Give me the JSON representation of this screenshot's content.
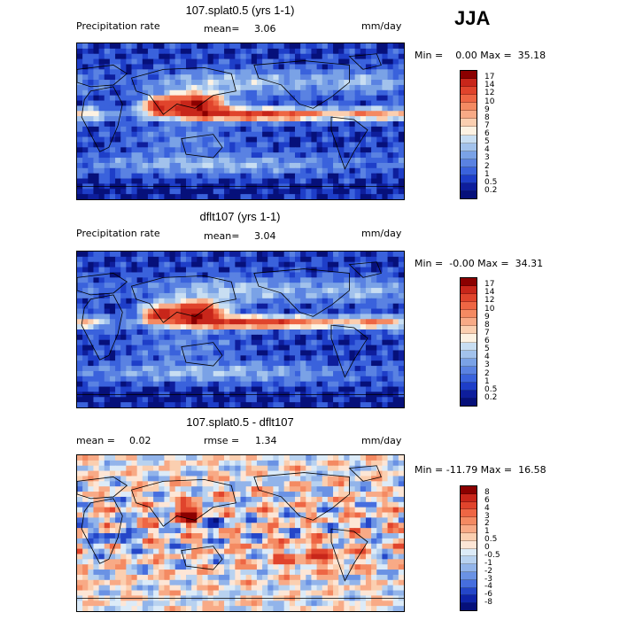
{
  "season": "JJA",
  "panels": [
    {
      "title": "107.splat0.5 (yrs 1-1)",
      "left_label": "Precipitation rate",
      "stat_label": "mean=",
      "stat_value": "3.06",
      "stat2_label": "",
      "stat2_value": "",
      "units": "mm/day",
      "minmax": "Min =    0.00 Max =  35.18",
      "levels": [
        "17",
        "14",
        "12",
        "10",
        "9",
        "8",
        "7",
        "6",
        "5",
        "4",
        "3",
        "2",
        "1",
        "0.5",
        "0.2"
      ],
      "colors": [
        "#8b0000",
        "#c8261a",
        "#e0442c",
        "#ee6644",
        "#f48a62",
        "#f8aa86",
        "#fbcfb0",
        "#fdf2e2",
        "#c8def2",
        "#a2c2ec",
        "#7aa2e6",
        "#5a82e2",
        "#3a62dc",
        "#1e3ec8",
        "#0e1e9c",
        "#06107a"
      ],
      "field": "abs"
    },
    {
      "title": "dflt107 (yrs 1-1)",
      "left_label": "Precipitation rate",
      "stat_label": "mean=",
      "stat_value": "3.04",
      "stat2_label": "",
      "stat2_value": "",
      "units": "mm/day",
      "minmax": "Min =  -0.00 Max =  34.31",
      "levels": [
        "17",
        "14",
        "12",
        "10",
        "9",
        "8",
        "7",
        "6",
        "5",
        "4",
        "3",
        "2",
        "1",
        "0.5",
        "0.2"
      ],
      "colors": [
        "#8b0000",
        "#c8261a",
        "#e0442c",
        "#ee6644",
        "#f48a62",
        "#f8aa86",
        "#fbcfb0",
        "#fdf2e2",
        "#c8def2",
        "#a2c2ec",
        "#7aa2e6",
        "#5a82e2",
        "#3a62dc",
        "#1e3ec8",
        "#0e1e9c",
        "#06107a"
      ],
      "field": "abs"
    },
    {
      "title": "107.splat0.5 - dflt107",
      "left_label": "",
      "stat_label": "mean =",
      "stat_value": "0.02",
      "stat2_label": "rmse =",
      "stat2_value": "1.34",
      "units": "mm/day",
      "minmax": "Min = -11.79 Max =  16.58",
      "levels": [
        "8",
        "6",
        "4",
        "3",
        "2",
        "1",
        "0.5",
        "0",
        "-0.5",
        "-1",
        "-2",
        "-3",
        "-4",
        "-6",
        "-8"
      ],
      "colors": [
        "#8b0000",
        "#c8261a",
        "#e0442c",
        "#ee6644",
        "#f48a62",
        "#f8aa86",
        "#fbcfb0",
        "#fde6d6",
        "#dcebf8",
        "#b8d2f0",
        "#92b4ea",
        "#6a92e4",
        "#466ede",
        "#2446c8",
        "#0e24a8",
        "#06107a"
      ],
      "field": "diff"
    }
  ],
  "chart_data": [
    {
      "type": "heatmap",
      "title": "107.splat0.5 (yrs 1-1)",
      "variable": "Precipitation rate",
      "units": "mm/day",
      "mean": 3.06,
      "min": 0.0,
      "max": 35.18,
      "contour_levels": [
        0.2,
        0.5,
        1,
        2,
        3,
        4,
        5,
        6,
        7,
        8,
        9,
        10,
        12,
        14,
        17
      ]
    },
    {
      "type": "heatmap",
      "title": "dflt107 (yrs 1-1)",
      "variable": "Precipitation rate",
      "units": "mm/day",
      "mean": 3.04,
      "min": -0.0,
      "max": 34.31,
      "contour_levels": [
        0.2,
        0.5,
        1,
        2,
        3,
        4,
        5,
        6,
        7,
        8,
        9,
        10,
        12,
        14,
        17
      ]
    },
    {
      "type": "heatmap",
      "title": "107.splat0.5 - dflt107",
      "units": "mm/day",
      "mean": 0.02,
      "rmse": 1.34,
      "min": -11.79,
      "max": 16.58,
      "contour_levels": [
        -8,
        -6,
        -4,
        -3,
        -2,
        -1,
        -0.5,
        0,
        0.5,
        1,
        2,
        3,
        4,
        6,
        8
      ]
    }
  ]
}
